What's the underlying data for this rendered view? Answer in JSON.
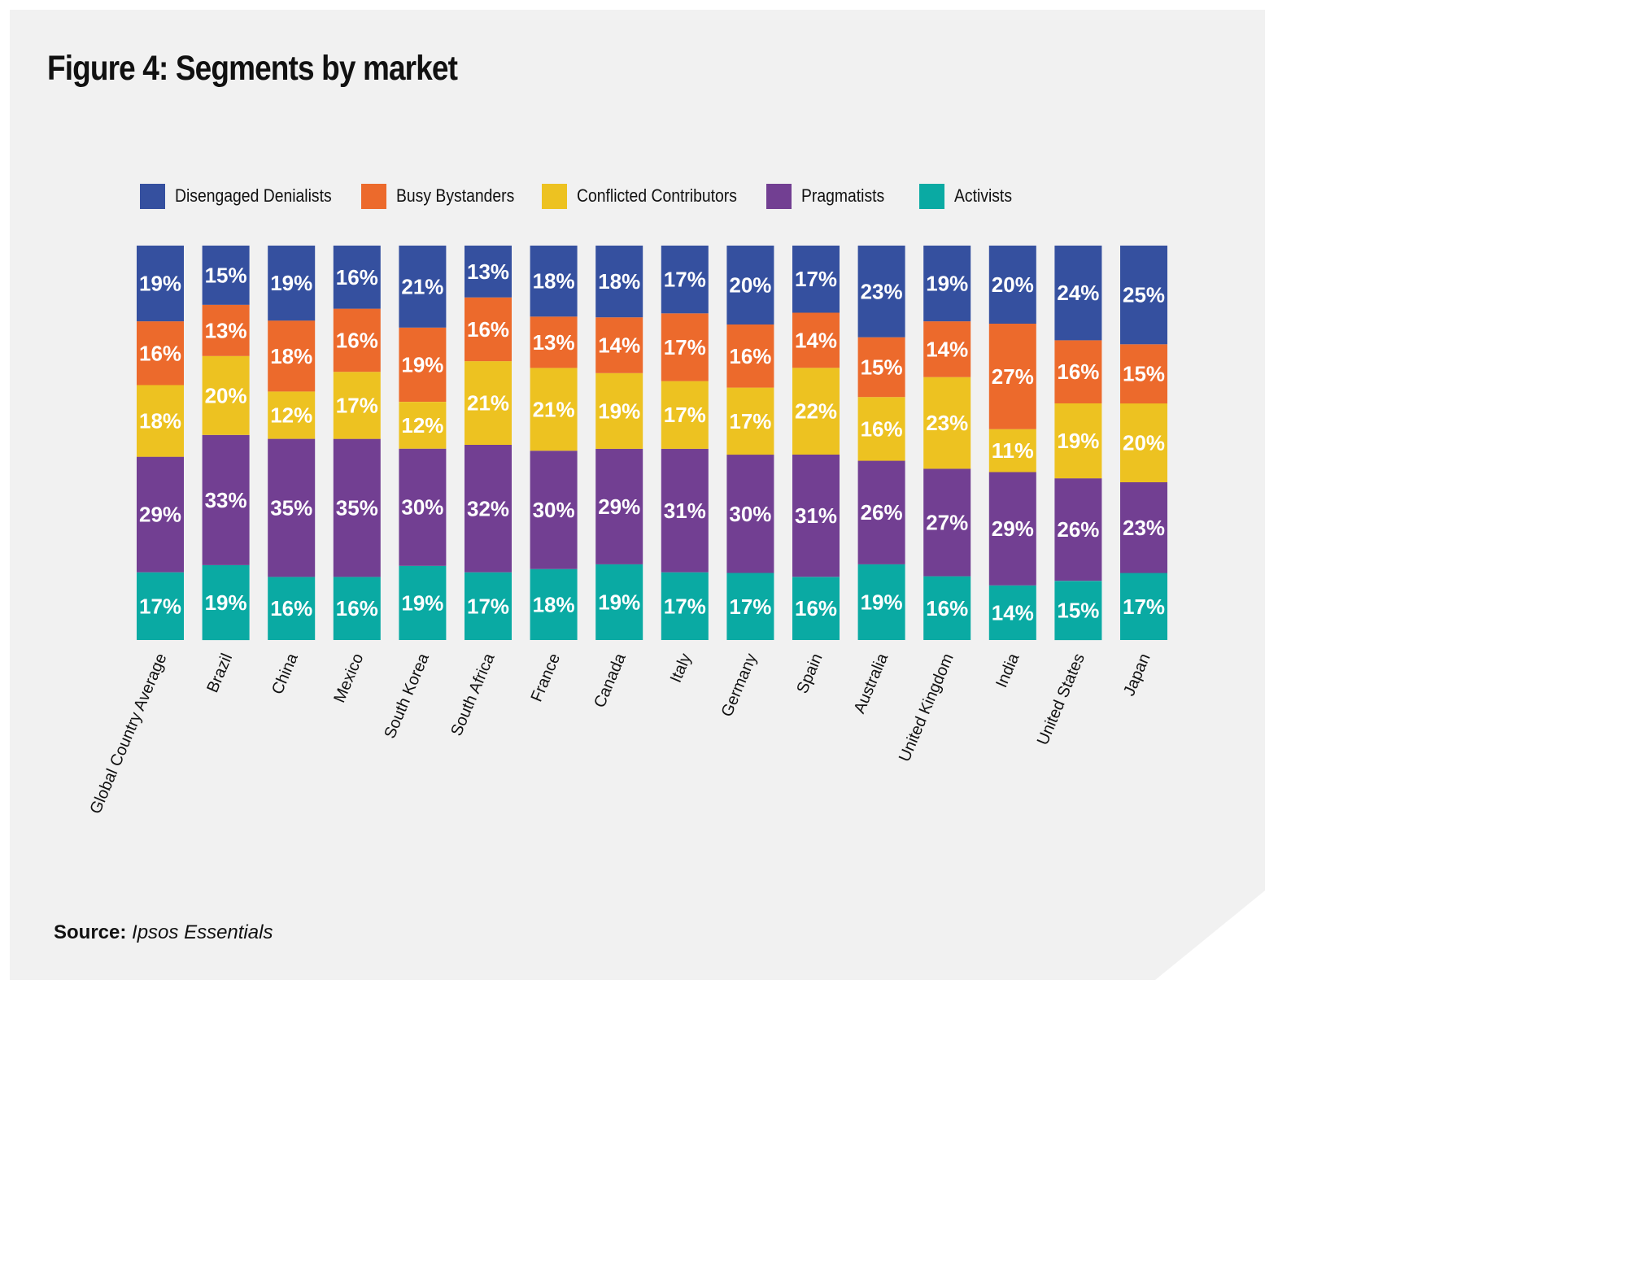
{
  "title": "Figure 4: Segments by market",
  "source": {
    "label": "Source:",
    "value": "Ipsos Essentials"
  },
  "colors": {
    "background": "#f1f1f1",
    "disengaged_denialists": "#35509f",
    "busy_bystanders": "#ec6a2c",
    "conflicted_contributors": "#edc221",
    "pragmatists": "#723f92",
    "activists": "#0aaaa3"
  },
  "chart_data": {
    "type": "bar",
    "stacked": true,
    "orientation": "vertical",
    "title": "Figure 4: Segments by market",
    "xlabel": "",
    "ylabel": "",
    "value_format": "percent",
    "categories": [
      "Global Country Average",
      "Brazil",
      "China",
      "Mexico",
      "South Korea",
      "South Africa",
      "France",
      "Canada",
      "Italy",
      "Germany",
      "Spain",
      "Australia",
      "United Kingdom",
      "India",
      "United States",
      "Japan"
    ],
    "series": [
      {
        "name": "Activists",
        "color": "#0aaaa3",
        "values": [
          17,
          19,
          16,
          16,
          19,
          17,
          18,
          19,
          17,
          17,
          16,
          19,
          16,
          14,
          15,
          17
        ]
      },
      {
        "name": "Pragmatists",
        "color": "#723f92",
        "values": [
          29,
          33,
          35,
          35,
          30,
          32,
          30,
          29,
          31,
          30,
          31,
          26,
          27,
          29,
          26,
          23
        ]
      },
      {
        "name": "Conflicted Contributors",
        "color": "#edc221",
        "values": [
          18,
          20,
          12,
          17,
          12,
          21,
          21,
          19,
          17,
          17,
          22,
          16,
          23,
          11,
          19,
          20
        ]
      },
      {
        "name": "Busy Bystanders",
        "color": "#ec6a2c",
        "values": [
          16,
          13,
          18,
          16,
          19,
          16,
          13,
          14,
          17,
          16,
          14,
          15,
          14,
          27,
          16,
          15
        ]
      },
      {
        "name": "Disengaged Denialists",
        "color": "#35509f",
        "values": [
          19,
          15,
          19,
          16,
          21,
          13,
          18,
          18,
          17,
          20,
          17,
          23,
          19,
          20,
          24,
          25
        ]
      }
    ],
    "legend": {
      "placement": "top",
      "order": [
        "Disengaged Denialists",
        "Busy Bystanders",
        "Conflicted Contributors",
        "Pragmatists",
        "Activists"
      ]
    }
  }
}
